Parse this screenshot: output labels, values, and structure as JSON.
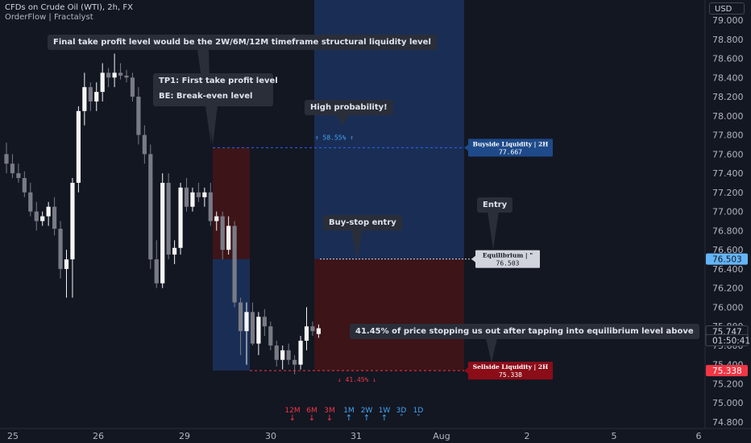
{
  "header": {
    "symbol_title": "CFDs on Crude Oil (WTI), 2h, FX",
    "indicator": "OrderFlow | Fractalyst"
  },
  "currency_button": "USD",
  "price_axis": {
    "ticks": [
      "79.000",
      "78.800",
      "78.600",
      "78.400",
      "78.200",
      "78.000",
      "77.800",
      "77.600",
      "77.400",
      "77.200",
      "77.000",
      "76.800",
      "76.600",
      "76.400",
      "76.200",
      "76.000",
      "75.800",
      "75.600",
      "75.400",
      "75.200",
      "75.000",
      "74.800"
    ],
    "labels": [
      {
        "text": "76.503",
        "value": 76.503,
        "bg": "#64b5f6",
        "fg": "#131722"
      },
      {
        "text": "75.747",
        "value": 75.747,
        "bg": "#131722",
        "fg": "#d1d4dc",
        "boxed": true
      },
      {
        "text": "01:50:41",
        "value": 75.655,
        "bg": "#131722",
        "fg": "#d1d4dc",
        "boxed": true
      },
      {
        "text": "75.338",
        "value": 75.338,
        "bg": "#f23645",
        "fg": "#ffffff"
      }
    ]
  },
  "time_axis": [
    "25",
    "26",
    "29",
    "30",
    "31",
    "Aug",
    "2",
    "5",
    "6"
  ],
  "annotations": {
    "final_tp": "Final take profit level would be the 2W/6M/12M timeframe structural liquidity level",
    "tp1": "TP1: First take profit level",
    "be": "BE: Break-even level",
    "high_prob": "High probability!",
    "entry": "Entry",
    "buy_stop": "Buy-stop entry",
    "percent_note": "41.45% of price stopping us out after tapping into equilibrium level above"
  },
  "levels": {
    "buyside": {
      "label": "Buyside Liquidity | 2H",
      "value": "77.667",
      "color": "#1e4a8a"
    },
    "equilibrium": {
      "label": "Equilibrium | \"",
      "value": "76.503",
      "color": "#d1d4dc"
    },
    "sellside": {
      "label": "Sellside Liquidity | 2H",
      "value": "75.338",
      "color": "#8b0d18"
    },
    "up_pct": "58.55%",
    "down_pct": "41.45%"
  },
  "timeframes": [
    {
      "label": "12M",
      "dir": "down",
      "color": "#f23645"
    },
    {
      "label": "6M",
      "dir": "down",
      "color": "#f23645"
    },
    {
      "label": "3M",
      "dir": "down",
      "color": "#f23645"
    },
    {
      "label": "1M",
      "dir": "up",
      "color": "#42a5f5"
    },
    {
      "label": "2W",
      "dir": "up",
      "color": "#42a5f5"
    },
    {
      "label": "1W",
      "dir": "up",
      "color": "#42a5f5"
    },
    {
      "label": "3D",
      "dir": "none",
      "color": "#42a5f5"
    },
    {
      "label": "1D",
      "dir": "none",
      "color": "#42a5f5"
    }
  ],
  "chart_data": {
    "type": "candlestick",
    "price_range": [
      74.8,
      79.0
    ],
    "candles": [
      {
        "o": 77.6,
        "h": 77.72,
        "l": 77.4,
        "c": 77.5
      },
      {
        "o": 77.5,
        "h": 77.6,
        "l": 77.35,
        "c": 77.4
      },
      {
        "o": 77.4,
        "h": 77.5,
        "l": 77.3,
        "c": 77.35
      },
      {
        "o": 77.35,
        "h": 77.42,
        "l": 77.15,
        "c": 77.2
      },
      {
        "o": 77.2,
        "h": 77.3,
        "l": 76.95,
        "c": 77.0
      },
      {
        "o": 77.0,
        "h": 77.1,
        "l": 76.8,
        "c": 76.9
      },
      {
        "o": 76.9,
        "h": 77.0,
        "l": 76.85,
        "c": 76.95
      },
      {
        "o": 76.95,
        "h": 77.1,
        "l": 76.85,
        "c": 77.05
      },
      {
        "o": 77.05,
        "h": 77.15,
        "l": 76.75,
        "c": 76.82
      },
      {
        "o": 76.82,
        "h": 76.9,
        "l": 76.3,
        "c": 76.4
      },
      {
        "o": 76.4,
        "h": 76.6,
        "l": 76.1,
        "c": 76.5
      },
      {
        "o": 76.5,
        "h": 77.35,
        "l": 76.1,
        "c": 77.3
      },
      {
        "o": 77.3,
        "h": 78.1,
        "l": 77.2,
        "c": 78.05
      },
      {
        "o": 78.05,
        "h": 78.45,
        "l": 77.9,
        "c": 78.3
      },
      {
        "o": 78.3,
        "h": 78.35,
        "l": 78.05,
        "c": 78.15
      },
      {
        "o": 78.15,
        "h": 78.35,
        "l": 78.05,
        "c": 78.25
      },
      {
        "o": 78.25,
        "h": 78.55,
        "l": 78.15,
        "c": 78.45
      },
      {
        "o": 78.45,
        "h": 78.5,
        "l": 78.3,
        "c": 78.4
      },
      {
        "o": 78.4,
        "h": 78.65,
        "l": 78.3,
        "c": 78.45
      },
      {
        "o": 78.45,
        "h": 78.55,
        "l": 78.38,
        "c": 78.42
      },
      {
        "o": 78.42,
        "h": 78.48,
        "l": 78.35,
        "c": 78.4
      },
      {
        "o": 78.4,
        "h": 78.45,
        "l": 78.15,
        "c": 78.2
      },
      {
        "o": 78.2,
        "h": 78.3,
        "l": 77.7,
        "c": 77.8
      },
      {
        "o": 77.8,
        "h": 77.9,
        "l": 77.5,
        "c": 77.6
      },
      {
        "o": 77.6,
        "h": 77.7,
        "l": 76.4,
        "c": 76.5
      },
      {
        "o": 76.5,
        "h": 76.7,
        "l": 76.2,
        "c": 76.25
      },
      {
        "o": 76.25,
        "h": 77.4,
        "l": 76.2,
        "c": 77.3
      },
      {
        "o": 77.3,
        "h": 77.4,
        "l": 76.5,
        "c": 76.55
      },
      {
        "o": 76.55,
        "h": 76.7,
        "l": 76.45,
        "c": 76.62
      },
      {
        "o": 76.62,
        "h": 77.3,
        "l": 76.55,
        "c": 77.25
      },
      {
        "o": 77.25,
        "h": 77.35,
        "l": 77.0,
        "c": 77.05
      },
      {
        "o": 77.05,
        "h": 77.25,
        "l": 77.0,
        "c": 77.2
      },
      {
        "o": 77.2,
        "h": 77.3,
        "l": 77.1,
        "c": 77.15
      },
      {
        "o": 77.15,
        "h": 77.25,
        "l": 77.05,
        "c": 77.2
      },
      {
        "o": 77.2,
        "h": 77.3,
        "l": 76.85,
        "c": 76.9
      },
      {
        "o": 76.9,
        "h": 77.0,
        "l": 76.8,
        "c": 76.95
      },
      {
        "o": 76.95,
        "h": 77.0,
        "l": 76.5,
        "c": 76.6
      },
      {
        "o": 76.6,
        "h": 76.95,
        "l": 76.55,
        "c": 76.85
      },
      {
        "o": 76.85,
        "h": 76.9,
        "l": 76.0,
        "c": 76.05
      },
      {
        "o": 76.05,
        "h": 76.1,
        "l": 75.5,
        "c": 75.75
      },
      {
        "o": 75.75,
        "h": 76.05,
        "l": 75.4,
        "c": 75.95
      },
      {
        "o": 75.95,
        "h": 76.05,
        "l": 75.6,
        "c": 75.62
      },
      {
        "o": 75.62,
        "h": 75.95,
        "l": 75.5,
        "c": 75.9
      },
      {
        "o": 75.9,
        "h": 75.98,
        "l": 75.7,
        "c": 75.8
      },
      {
        "o": 75.8,
        "h": 75.85,
        "l": 75.55,
        "c": 75.6
      },
      {
        "o": 75.6,
        "h": 75.65,
        "l": 75.38,
        "c": 75.45
      },
      {
        "o": 75.45,
        "h": 75.6,
        "l": 75.35,
        "c": 75.55
      },
      {
        "o": 75.55,
        "h": 75.62,
        "l": 75.4,
        "c": 75.45
      },
      {
        "o": 75.45,
        "h": 75.5,
        "l": 75.3,
        "c": 75.4
      },
      {
        "o": 75.4,
        "h": 75.7,
        "l": 75.35,
        "c": 75.65
      },
      {
        "o": 75.65,
        "h": 76.0,
        "l": 75.55,
        "c": 75.8
      },
      {
        "o": 75.8,
        "h": 75.85,
        "l": 75.7,
        "c": 75.75
      },
      {
        "o": 75.72,
        "h": 75.82,
        "l": 75.68,
        "c": 75.78
      }
    ]
  }
}
